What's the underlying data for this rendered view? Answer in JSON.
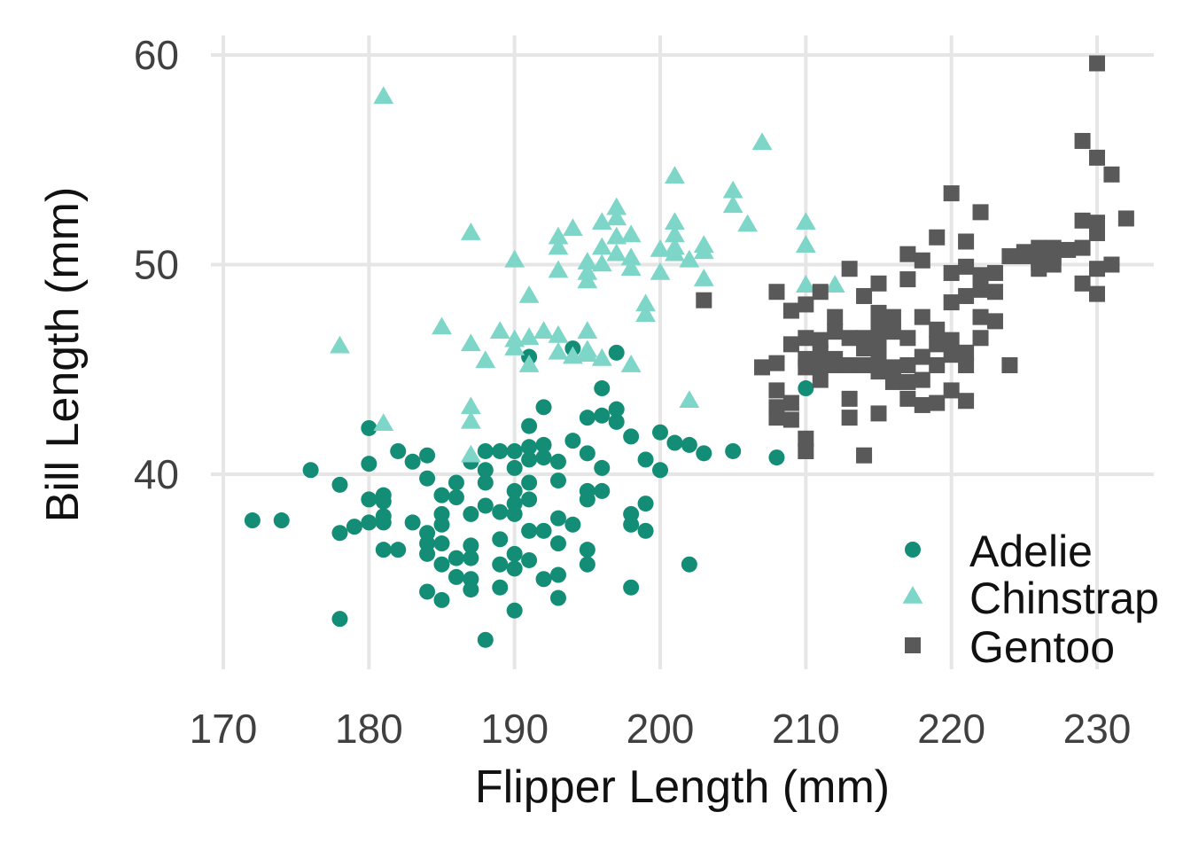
{
  "chart_data": {
    "type": "scatter",
    "title": "",
    "xlabel": "Flipper Length (mm)",
    "ylabel": "Bill Length (mm)",
    "xlim": [
      170,
      232
    ],
    "ylim": [
      31,
      61
    ],
    "x_ticks": [
      "170",
      "180",
      "190",
      "200",
      "210",
      "220",
      "230"
    ],
    "y_ticks": [
      "40",
      "50",
      "60"
    ],
    "grid": true,
    "legend": "bottom-right",
    "series": [
      {
        "name": "Adelie",
        "marker": "circle",
        "color": "#138d75",
        "points": [
          [
            172,
            37.8
          ],
          [
            174,
            37.8
          ],
          [
            176,
            40.2
          ],
          [
            178,
            39.5
          ],
          [
            178,
            37.2
          ],
          [
            178,
            33.1
          ],
          [
            179,
            37.5
          ],
          [
            180,
            42.2
          ],
          [
            180,
            40.5
          ],
          [
            180,
            38.8
          ],
          [
            180,
            37.7
          ],
          [
            181,
            39.0
          ],
          [
            181,
            38.7
          ],
          [
            181,
            38.0
          ],
          [
            181,
            37.7
          ],
          [
            181,
            36.4
          ],
          [
            182,
            41.1
          ],
          [
            182,
            36.4
          ],
          [
            183,
            40.6
          ],
          [
            183,
            37.7
          ],
          [
            184,
            40.9
          ],
          [
            184,
            39.8
          ],
          [
            184,
            37.2
          ],
          [
            184,
            36.7
          ],
          [
            184,
            36.2
          ],
          [
            184,
            34.4
          ],
          [
            185,
            39.0
          ],
          [
            185,
            38.1
          ],
          [
            185,
            37.6
          ],
          [
            185,
            36.7
          ],
          [
            185,
            35.7
          ],
          [
            185,
            34.0
          ],
          [
            186,
            39.6
          ],
          [
            186,
            38.9
          ],
          [
            186,
            36.0
          ],
          [
            186,
            35.1
          ],
          [
            187,
            40.6
          ],
          [
            187,
            38.1
          ],
          [
            187,
            36.6
          ],
          [
            187,
            36.0
          ],
          [
            187,
            35.0
          ],
          [
            187,
            34.5
          ],
          [
            188,
            41.1
          ],
          [
            188,
            40.2
          ],
          [
            188,
            39.6
          ],
          [
            188,
            38.5
          ],
          [
            188,
            32.1
          ],
          [
            189,
            41.1
          ],
          [
            189,
            38.2
          ],
          [
            189,
            36.9
          ],
          [
            189,
            35.7
          ],
          [
            189,
            34.6
          ],
          [
            190,
            41.1
          ],
          [
            190,
            40.3
          ],
          [
            190,
            39.2
          ],
          [
            190,
            38.6
          ],
          [
            190,
            38.1
          ],
          [
            190,
            36.2
          ],
          [
            190,
            35.5
          ],
          [
            190,
            33.5
          ],
          [
            191,
            42.3
          ],
          [
            191,
            41.3
          ],
          [
            191,
            40.7
          ],
          [
            191,
            39.6
          ],
          [
            191,
            38.8
          ],
          [
            191,
            37.3
          ],
          [
            191,
            35.9
          ],
          [
            191,
            45.6
          ],
          [
            192,
            43.2
          ],
          [
            192,
            41.4
          ],
          [
            192,
            40.8
          ],
          [
            192,
            37.3
          ],
          [
            192,
            35.0
          ],
          [
            193,
            40.6
          ],
          [
            193,
            39.7
          ],
          [
            193,
            37.9
          ],
          [
            193,
            36.7
          ],
          [
            193,
            35.2
          ],
          [
            193,
            34.1
          ],
          [
            194,
            41.6
          ],
          [
            194,
            37.6
          ],
          [
            194,
            46.0
          ],
          [
            195,
            42.7
          ],
          [
            195,
            41.0
          ],
          [
            195,
            39.2
          ],
          [
            195,
            38.8
          ],
          [
            195,
            36.4
          ],
          [
            195,
            35.7
          ],
          [
            196,
            44.1
          ],
          [
            196,
            42.8
          ],
          [
            196,
            40.3
          ],
          [
            196,
            39.2
          ],
          [
            197,
            43.1
          ],
          [
            197,
            42.5
          ],
          [
            197,
            45.8
          ],
          [
            198,
            41.8
          ],
          [
            198,
            38.1
          ],
          [
            198,
            37.6
          ],
          [
            198,
            34.6
          ],
          [
            199,
            40.7
          ],
          [
            199,
            38.6
          ],
          [
            199,
            37.3
          ],
          [
            200,
            42.0
          ],
          [
            200,
            40.2
          ],
          [
            201,
            41.5
          ],
          [
            202,
            41.4
          ],
          [
            202,
            35.7
          ],
          [
            203,
            41.0
          ],
          [
            205,
            41.1
          ],
          [
            208,
            40.8
          ],
          [
            210,
            44.1
          ]
        ]
      },
      {
        "name": "Chinstrap",
        "marker": "triangle",
        "color": "#7dd6c7",
        "points": [
          [
            178,
            46.1
          ],
          [
            181,
            42.4
          ],
          [
            181,
            58.0
          ],
          [
            185,
            47.0
          ],
          [
            187,
            51.5
          ],
          [
            187,
            46.2
          ],
          [
            187,
            43.2
          ],
          [
            187,
            42.5
          ],
          [
            187,
            40.9
          ],
          [
            188,
            45.4
          ],
          [
            189,
            46.8
          ],
          [
            190,
            50.2
          ],
          [
            190,
            46.4
          ],
          [
            190,
            46.0
          ],
          [
            191,
            48.5
          ],
          [
            191,
            46.5
          ],
          [
            191,
            45.2
          ],
          [
            192,
            46.8
          ],
          [
            193,
            51.3
          ],
          [
            193,
            50.8
          ],
          [
            193,
            49.7
          ],
          [
            193,
            46.6
          ],
          [
            193,
            45.8
          ],
          [
            194,
            51.7
          ],
          [
            194,
            45.6
          ],
          [
            195,
            50.1
          ],
          [
            195,
            49.6
          ],
          [
            195,
            49.2
          ],
          [
            195,
            46.8
          ],
          [
            195,
            45.9
          ],
          [
            195,
            45.7
          ],
          [
            196,
            52.0
          ],
          [
            196,
            50.8
          ],
          [
            196,
            50.0
          ],
          [
            196,
            45.5
          ],
          [
            197,
            52.7
          ],
          [
            197,
            52.2
          ],
          [
            197,
            51.3
          ],
          [
            197,
            50.5
          ],
          [
            198,
            51.4
          ],
          [
            198,
            50.3
          ],
          [
            198,
            49.8
          ],
          [
            198,
            45.2
          ],
          [
            199,
            48.1
          ],
          [
            199,
            47.6
          ],
          [
            200,
            50.7
          ],
          [
            200,
            49.6
          ],
          [
            201,
            54.2
          ],
          [
            201,
            52.0
          ],
          [
            201,
            51.4
          ],
          [
            201,
            50.8
          ],
          [
            201,
            50.5
          ],
          [
            202,
            50.2
          ],
          [
            202,
            43.5
          ],
          [
            203,
            50.9
          ],
          [
            203,
            50.6
          ],
          [
            203,
            49.3
          ],
          [
            205,
            53.5
          ],
          [
            205,
            52.8
          ],
          [
            206,
            51.9
          ],
          [
            207,
            55.8
          ],
          [
            210,
            52.0
          ],
          [
            210,
            50.9
          ],
          [
            210,
            49.0
          ],
          [
            212,
            49.0
          ]
        ]
      },
      {
        "name": "Gentoo",
        "marker": "square",
        "color": "#595959",
        "points": [
          [
            203,
            48.3
          ],
          [
            208,
            48.7
          ],
          [
            207,
            45.1
          ],
          [
            208,
            45.3
          ],
          [
            208,
            44.0
          ],
          [
            208,
            43.2
          ],
          [
            208,
            42.7
          ],
          [
            209,
            47.8
          ],
          [
            209,
            46.2
          ],
          [
            209,
            43.4
          ],
          [
            209,
            42.6
          ],
          [
            210,
            48.1
          ],
          [
            210,
            46.5
          ],
          [
            210,
            45.5
          ],
          [
            210,
            45.1
          ],
          [
            210,
            41.7
          ],
          [
            210,
            41.1
          ],
          [
            211,
            48.7
          ],
          [
            211,
            46.4
          ],
          [
            211,
            45.8
          ],
          [
            211,
            45.2
          ],
          [
            211,
            44.5
          ],
          [
            212,
            47.5
          ],
          [
            212,
            46.8
          ],
          [
            212,
            45.5
          ],
          [
            212,
            45.2
          ],
          [
            213,
            49.8
          ],
          [
            213,
            46.5
          ],
          [
            213,
            45.2
          ],
          [
            213,
            43.6
          ],
          [
            213,
            42.7
          ],
          [
            214,
            48.5
          ],
          [
            214,
            46.5
          ],
          [
            214,
            46.0
          ],
          [
            214,
            45.2
          ],
          [
            214,
            40.9
          ],
          [
            215,
            49.1
          ],
          [
            215,
            47.7
          ],
          [
            215,
            47.3
          ],
          [
            215,
            46.6
          ],
          [
            215,
            46.1
          ],
          [
            215,
            45.5
          ],
          [
            215,
            44.9
          ],
          [
            215,
            42.9
          ],
          [
            216,
            47.5
          ],
          [
            216,
            46.8
          ],
          [
            216,
            45.1
          ],
          [
            216,
            44.4
          ],
          [
            217,
            50.5
          ],
          [
            217,
            49.3
          ],
          [
            217,
            46.5
          ],
          [
            217,
            45.2
          ],
          [
            217,
            44.4
          ],
          [
            217,
            43.6
          ],
          [
            218,
            50.2
          ],
          [
            218,
            47.5
          ],
          [
            218,
            45.6
          ],
          [
            218,
            44.5
          ],
          [
            218,
            43.3
          ],
          [
            219,
            51.3
          ],
          [
            219,
            46.9
          ],
          [
            219,
            46.2
          ],
          [
            219,
            45.2
          ],
          [
            219,
            43.4
          ],
          [
            220,
            53.4
          ],
          [
            220,
            49.6
          ],
          [
            220,
            48.2
          ],
          [
            220,
            46.4
          ],
          [
            220,
            45.7
          ],
          [
            220,
            44.0
          ],
          [
            221,
            51.1
          ],
          [
            221,
            49.9
          ],
          [
            221,
            48.5
          ],
          [
            221,
            45.8
          ],
          [
            221,
            45.2
          ],
          [
            221,
            43.5
          ],
          [
            222,
            52.5
          ],
          [
            222,
            49.5
          ],
          [
            222,
            48.8
          ],
          [
            222,
            47.5
          ],
          [
            222,
            46.5
          ],
          [
            223,
            49.6
          ],
          [
            223,
            48.7
          ],
          [
            223,
            47.3
          ],
          [
            224,
            50.4
          ],
          [
            224,
            45.2
          ],
          [
            225,
            50.6
          ],
          [
            225,
            50.4
          ],
          [
            226,
            50.8
          ],
          [
            226,
            50.1
          ],
          [
            226,
            49.8
          ],
          [
            227,
            50.8
          ],
          [
            227,
            50.4
          ],
          [
            227,
            50.0
          ],
          [
            228,
            50.7
          ],
          [
            229,
            55.9
          ],
          [
            229,
            52.1
          ],
          [
            229,
            50.8
          ],
          [
            229,
            49.1
          ],
          [
            230,
            59.6
          ],
          [
            230,
            55.1
          ],
          [
            230,
            52.0
          ],
          [
            230,
            51.5
          ],
          [
            230,
            49.8
          ],
          [
            230,
            48.6
          ],
          [
            231,
            54.3
          ],
          [
            231,
            50.0
          ],
          [
            232,
            52.2
          ]
        ]
      }
    ]
  }
}
